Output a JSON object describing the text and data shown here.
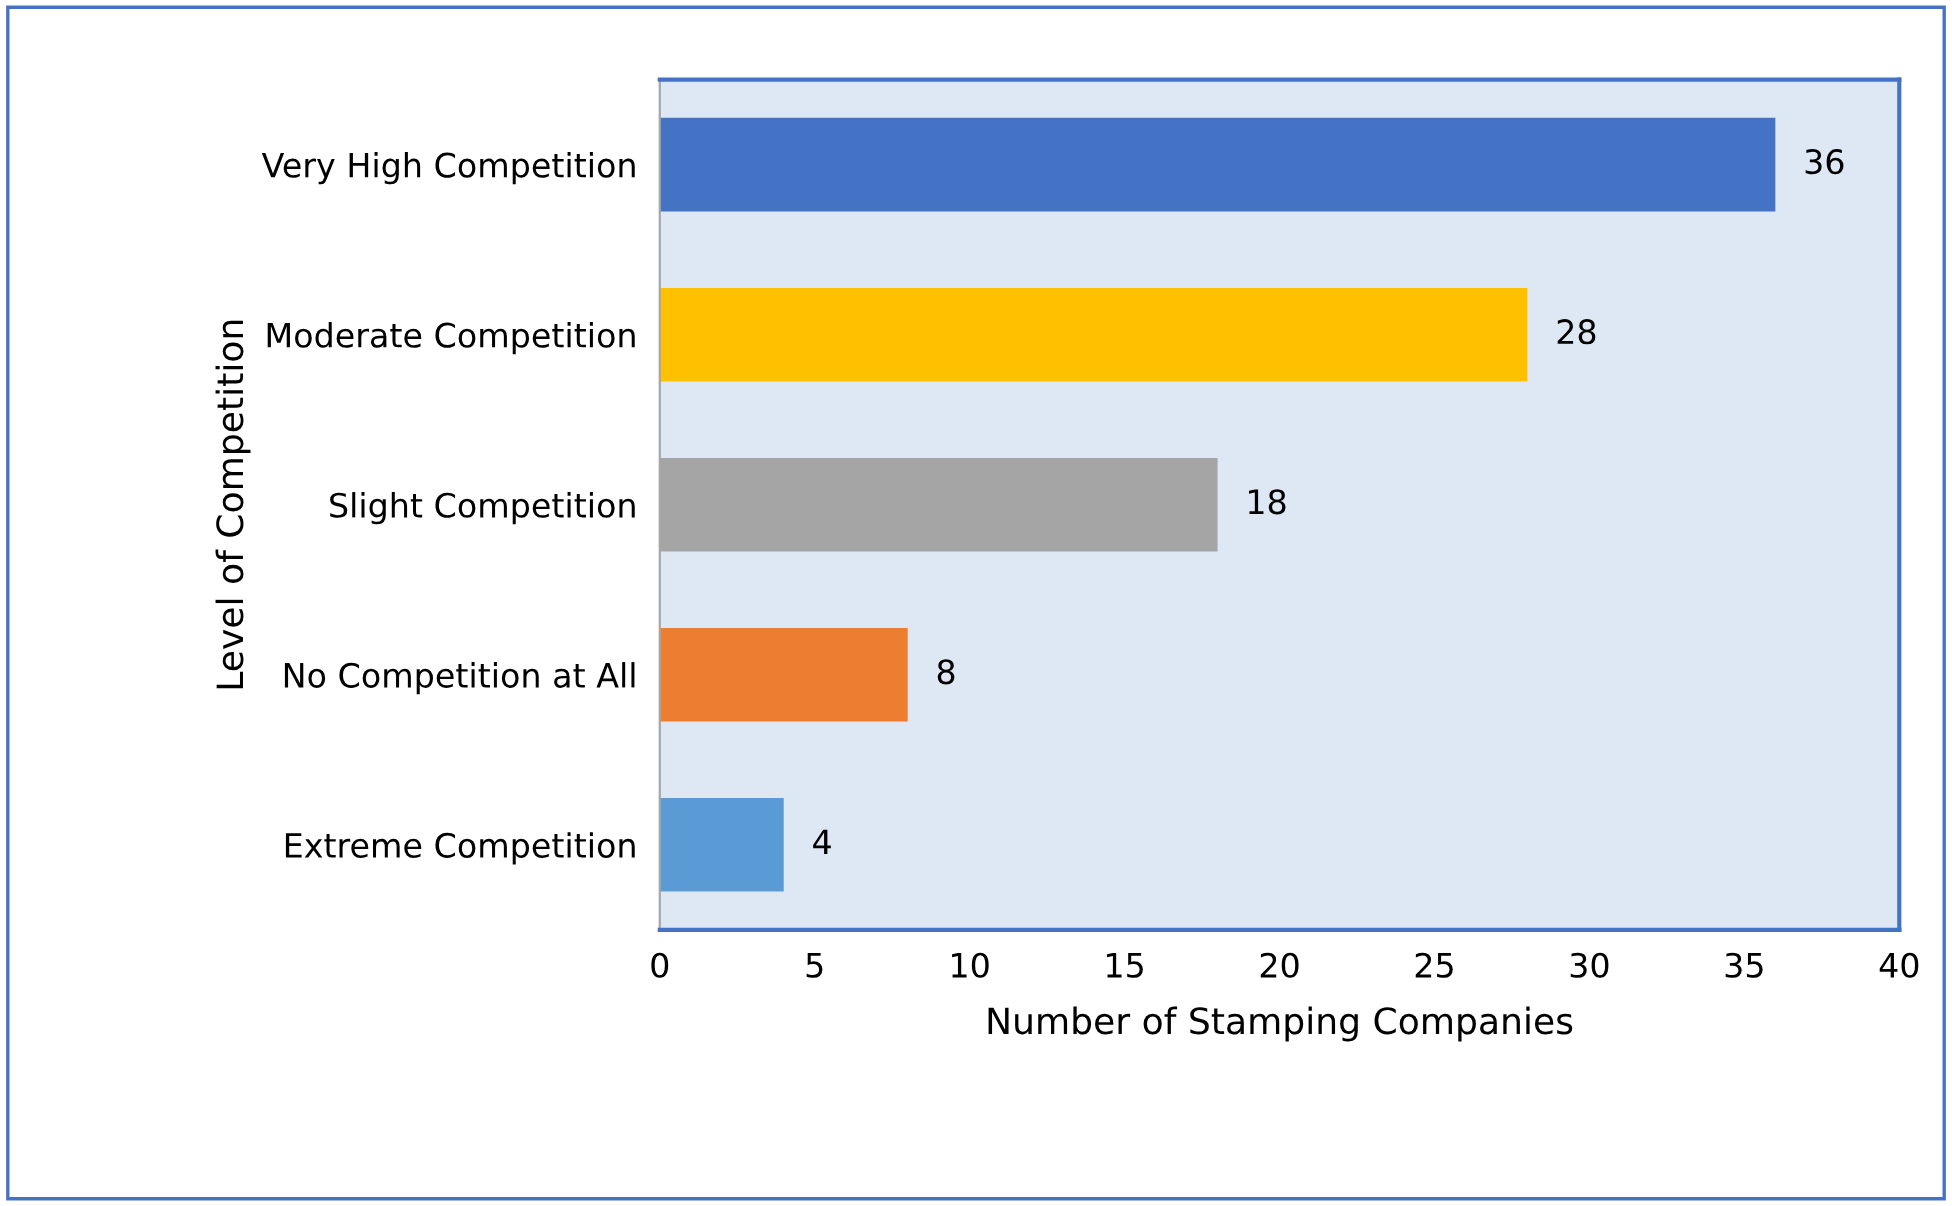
{
  "chart_data": {
    "type": "bar",
    "orientation": "horizontal",
    "xlabel": "Number of Stamping Companies",
    "ylabel": "Level of Competition",
    "categories": [
      "Very High Competition",
      "Moderate Competition",
      "Slight Competition",
      "No Competition at All",
      "Extreme Competition"
    ],
    "values": [
      36,
      28,
      18,
      8,
      4
    ],
    "colors": [
      "#4472c4",
      "#ffc000",
      "#a5a5a5",
      "#ed7d31",
      "#5b9bd5"
    ],
    "xlim": [
      0,
      40
    ],
    "xticks": [
      0,
      5,
      10,
      15,
      20,
      25,
      30,
      35,
      40
    ],
    "grid": false,
    "data_labels": true
  }
}
